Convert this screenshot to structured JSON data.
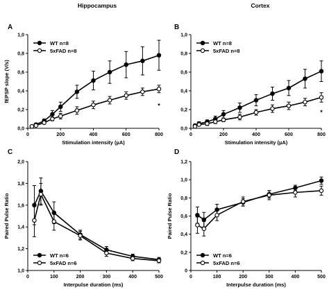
{
  "column_headers": [
    "Hippocampus",
    "Cortex"
  ],
  "chart_data": [
    {
      "type": "line",
      "panel": "A",
      "xlabel": "Stimulation intensity (µA)",
      "ylabel": "fEPSP slope (V/s)",
      "xlim": [
        0,
        800
      ],
      "ylim": [
        0,
        1.0
      ],
      "xticks": [
        "0",
        "200",
        "400",
        "600",
        "800"
      ],
      "yticks": [
        "0,0",
        "0,2",
        "0,4",
        "0,6",
        "0,8",
        "1,0"
      ],
      "legend_position": "top-left",
      "annotations": [
        {
          "text": "*",
          "x": 800,
          "y": 0.22
        }
      ],
      "series": [
        {
          "name": "WT n=8",
          "marker": "filled",
          "x": [
            25,
            50,
            100,
            150,
            200,
            300,
            400,
            500,
            600,
            700,
            800
          ],
          "y": [
            0.02,
            0.04,
            0.08,
            0.15,
            0.23,
            0.39,
            0.51,
            0.6,
            0.68,
            0.72,
            0.78
          ],
          "err": [
            0.01,
            0.01,
            0.02,
            0.04,
            0.05,
            0.07,
            0.1,
            0.12,
            0.14,
            0.15,
            0.16
          ]
        },
        {
          "name": "5xFAD n=8",
          "marker": "open",
          "x": [
            25,
            50,
            100,
            150,
            200,
            300,
            400,
            500,
            600,
            700,
            800
          ],
          "y": [
            0.02,
            0.03,
            0.06,
            0.1,
            0.13,
            0.19,
            0.25,
            0.3,
            0.35,
            0.39,
            0.42
          ],
          "err": [
            0.01,
            0.01,
            0.01,
            0.02,
            0.03,
            0.04,
            0.04,
            0.04,
            0.04,
            0.04,
            0.04
          ]
        }
      ]
    },
    {
      "type": "line",
      "panel": "B",
      "xlabel": "Stimulation intensity (µA)",
      "ylabel": "",
      "xlim": [
        0,
        800
      ],
      "ylim": [
        0,
        1.0
      ],
      "xticks": [
        "0",
        "200",
        "400",
        "600",
        "800"
      ],
      "yticks": [
        "0,0",
        "0,2",
        "0,4",
        "0,6",
        "0,8",
        "1,0"
      ],
      "legend_position": "top-left",
      "annotations": [
        {
          "text": "*",
          "x": 800,
          "y": 0.15
        }
      ],
      "series": [
        {
          "name": "WT n=8",
          "marker": "filled",
          "x": [
            25,
            50,
            100,
            150,
            200,
            300,
            400,
            500,
            600,
            700,
            800
          ],
          "y": [
            0.03,
            0.05,
            0.07,
            0.1,
            0.15,
            0.22,
            0.3,
            0.37,
            0.43,
            0.53,
            0.61
          ],
          "err": [
            0.01,
            0.02,
            0.02,
            0.03,
            0.04,
            0.05,
            0.06,
            0.07,
            0.08,
            0.1,
            0.11
          ]
        },
        {
          "name": "5xFAD n=8",
          "marker": "open",
          "x": [
            25,
            50,
            100,
            150,
            200,
            300,
            400,
            500,
            600,
            700,
            800
          ],
          "y": [
            0.02,
            0.04,
            0.05,
            0.07,
            0.09,
            0.12,
            0.17,
            0.21,
            0.24,
            0.28,
            0.33
          ],
          "err": [
            0.01,
            0.01,
            0.02,
            0.02,
            0.02,
            0.03,
            0.03,
            0.04,
            0.04,
            0.04,
            0.05
          ]
        }
      ]
    },
    {
      "type": "line",
      "panel": "C",
      "xlabel": "Interpulse duration (ms)",
      "ylabel": "Paired Pulse Ratio",
      "xlim": [
        0,
        500
      ],
      "ylim": [
        1.0,
        2.0
      ],
      "xticks": [
        "0",
        "100",
        "200",
        "300",
        "400",
        "500"
      ],
      "yticks": [
        "1,0",
        "1,2",
        "1,4",
        "1,6",
        "1,8",
        "2,0"
      ],
      "legend_position": "bottom-left",
      "annotations": [],
      "series": [
        {
          "name": "WT n=6",
          "marker": "filled",
          "x": [
            25,
            50,
            100,
            200,
            300,
            400,
            500
          ],
          "y": [
            1.6,
            1.73,
            1.53,
            1.33,
            1.19,
            1.13,
            1.1
          ],
          "err": [
            0.18,
            0.12,
            0.1,
            0.04,
            0.03,
            0.02,
            0.02
          ]
        },
        {
          "name": "5xFAD n=6",
          "marker": "open",
          "x": [
            25,
            50,
            100,
            200,
            300,
            400,
            500
          ],
          "y": [
            1.46,
            1.7,
            1.45,
            1.32,
            1.16,
            1.11,
            1.09
          ],
          "err": [
            0.15,
            0.1,
            0.08,
            0.04,
            0.03,
            0.02,
            0.02
          ]
        }
      ]
    },
    {
      "type": "line",
      "panel": "D",
      "xlabel": "Interpulse duration (ms)",
      "ylabel": "Paired Pulse Ratio",
      "xlim": [
        0,
        500
      ],
      "ylim": [
        0,
        1.2
      ],
      "xticks": [
        "0",
        "100",
        "200",
        "300",
        "400",
        "500"
      ],
      "yticks": [
        "0",
        "0,2",
        "0,4",
        "0,6",
        "0,8",
        "1,0",
        "1,2"
      ],
      "legend_position": "bottom-left",
      "annotations": [],
      "series": [
        {
          "name": "WT n=6",
          "marker": "filled",
          "x": [
            25,
            50,
            100,
            200,
            300,
            400,
            500
          ],
          "y": [
            0.61,
            0.56,
            0.67,
            0.75,
            0.84,
            0.91,
            0.99
          ],
          "err": [
            0.09,
            0.08,
            0.06,
            0.04,
            0.04,
            0.03,
            0.04
          ]
        },
        {
          "name": "5xFAD n=6",
          "marker": "open",
          "x": [
            25,
            50,
            100,
            200,
            300,
            400,
            500
          ],
          "y": [
            0.5,
            0.46,
            0.61,
            0.76,
            0.83,
            0.86,
            0.88
          ],
          "err": [
            0.09,
            0.08,
            0.06,
            0.05,
            0.05,
            0.05,
            0.05
          ]
        }
      ]
    }
  ]
}
